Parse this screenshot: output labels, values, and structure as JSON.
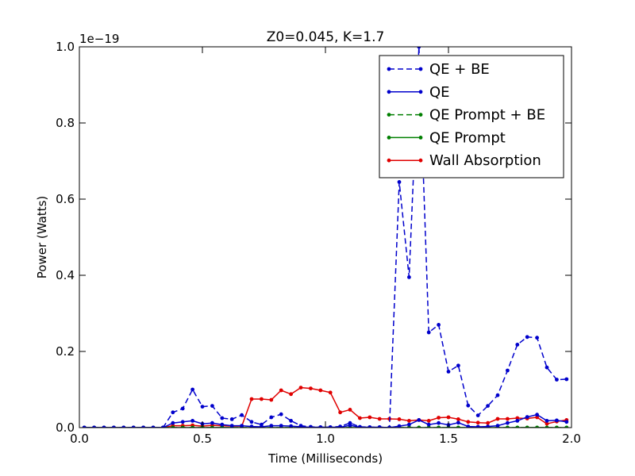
{
  "chart_data": {
    "type": "line",
    "title": "Z0=0.045, K=1.7",
    "xlabel": "Time (Milliseconds)",
    "ylabel": "Power (Watts)",
    "offset_label": "1e−19",
    "xlim": [
      0.0,
      2.0
    ],
    "ylim": [
      0.0,
      1.0
    ],
    "xticks": [
      "0.0",
      "0.5",
      "1.0",
      "1.5",
      "2.0"
    ],
    "yticks": [
      "0.0",
      "0.2",
      "0.4",
      "0.6",
      "0.8",
      "1.0"
    ],
    "legend_position": "top-right",
    "grid": false,
    "x": [
      0.02,
      0.06,
      0.1,
      0.14,
      0.18,
      0.22,
      0.26,
      0.3,
      0.34,
      0.38,
      0.42,
      0.46,
      0.5,
      0.54,
      0.58,
      0.62,
      0.66,
      0.7,
      0.74,
      0.78,
      0.82,
      0.86,
      0.9,
      0.94,
      0.98,
      1.02,
      1.06,
      1.1,
      1.14,
      1.18,
      1.22,
      1.26,
      1.3,
      1.34,
      1.38,
      1.42,
      1.46,
      1.5,
      1.54,
      1.58,
      1.62,
      1.66,
      1.7,
      1.74,
      1.78,
      1.82,
      1.86,
      1.9,
      1.94,
      1.98
    ],
    "series": [
      {
        "name": "QE + BE",
        "color": "#0000cc",
        "dash": true,
        "values": [
          0,
          0,
          0,
          0,
          0,
          0,
          0,
          0,
          0,
          0.04,
          0.05,
          0.1,
          0.055,
          0.057,
          0.025,
          0.022,
          0.033,
          0.015,
          0.008,
          0.027,
          0.035,
          0.018,
          0.005,
          0.002,
          0.001,
          0.001,
          0.003,
          0.012,
          0.002,
          0.001,
          0.001,
          0,
          0.645,
          0.395,
          1.0,
          0.25,
          0.27,
          0.147,
          0.163,
          0.058,
          0.032,
          0.057,
          0.085,
          0.15,
          0.218,
          0.238,
          0.236,
          0.158,
          0.126,
          0.127
        ]
      },
      {
        "name": "QE",
        "color": "#0000cc",
        "dash": false,
        "values": [
          0,
          0,
          0,
          0,
          0,
          0,
          0,
          0,
          0,
          0.012,
          0.015,
          0.018,
          0.01,
          0.012,
          0.008,
          0.005,
          0.005,
          0.003,
          0.002,
          0.005,
          0.005,
          0.004,
          0.002,
          0.001,
          0.001,
          0.001,
          0.001,
          0.006,
          0.001,
          0.001,
          0.001,
          0,
          0.004,
          0.008,
          0.02,
          0.008,
          0.012,
          0.007,
          0.013,
          0.003,
          0.002,
          0.003,
          0.005,
          0.012,
          0.018,
          0.028,
          0.034,
          0.018,
          0.019,
          0.015
        ]
      },
      {
        "name": "QE Prompt + BE",
        "color": "#007f00",
        "dash": true,
        "values": [
          0,
          0,
          0,
          0,
          0,
          0,
          0,
          0,
          0,
          0,
          0,
          0,
          0,
          0,
          0,
          0,
          0,
          0,
          0,
          0,
          0,
          0,
          0,
          0,
          0,
          0,
          0,
          0,
          0,
          0,
          0,
          0,
          0,
          0,
          0,
          0,
          0,
          0,
          0,
          0,
          0,
          0,
          0,
          0,
          0,
          0,
          0,
          0,
          0,
          0
        ]
      },
      {
        "name": "QE Prompt",
        "color": "#007f00",
        "dash": false,
        "values": [
          0,
          0,
          0,
          0,
          0,
          0,
          0,
          0,
          0,
          0,
          0,
          0,
          0,
          0,
          0,
          0,
          0,
          0,
          0,
          0,
          0,
          0,
          0,
          0,
          0,
          0,
          0,
          0,
          0,
          0,
          0,
          0,
          0,
          0,
          0,
          0,
          0,
          0,
          0,
          0,
          0,
          0,
          0,
          0,
          0,
          0,
          0,
          0,
          0,
          0
        ]
      },
      {
        "name": "Wall Absorption",
        "color": "#e00000",
        "dash": false,
        "values": [
          0,
          0,
          0,
          0,
          0,
          0,
          0,
          0,
          0,
          0.005,
          0.005,
          0.006,
          0.004,
          0.006,
          0.005,
          0.004,
          0.004,
          0.075,
          0.075,
          0.073,
          0.098,
          0.088,
          0.105,
          0.103,
          0.098,
          0.092,
          0.04,
          0.047,
          0.025,
          0.027,
          0.023,
          0.023,
          0.022,
          0.018,
          0.02,
          0.018,
          0.026,
          0.027,
          0.022,
          0.015,
          0.013,
          0.012,
          0.023,
          0.023,
          0.025,
          0.024,
          0.027,
          0.01,
          0.016,
          0.02
        ]
      }
    ]
  }
}
